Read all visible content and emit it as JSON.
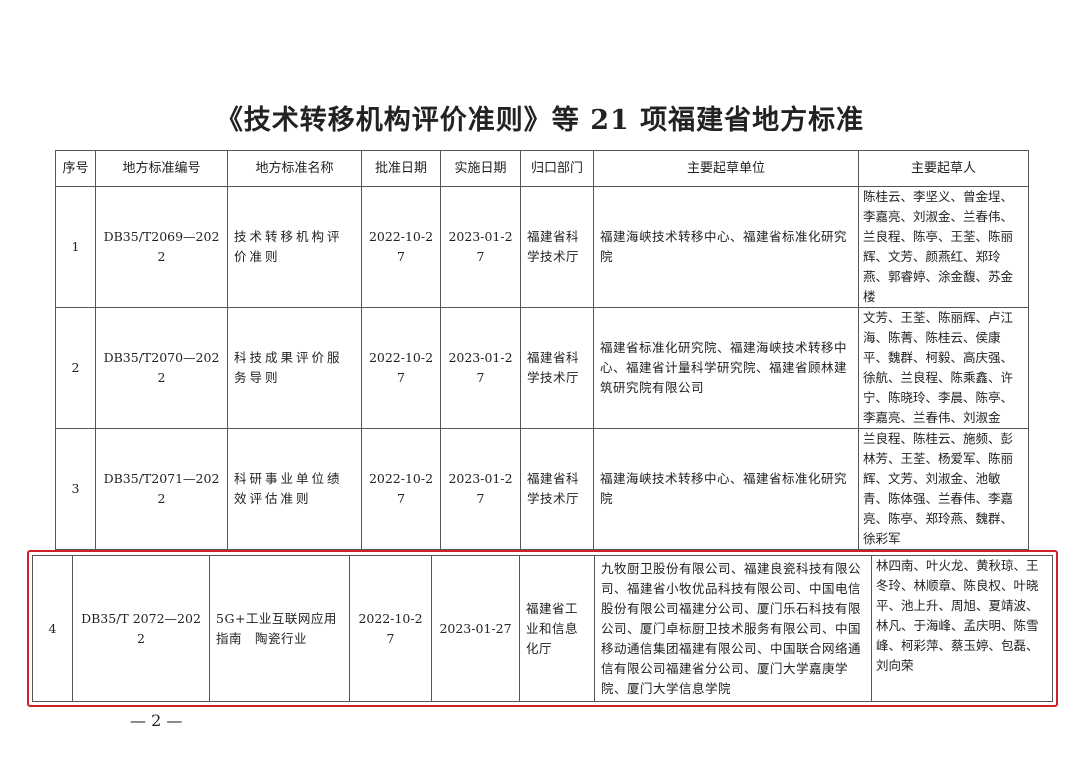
{
  "title": "《技术转移机构评价准则》等 21 项福建省地方标准",
  "headers": [
    "序号",
    "地方标准编号",
    "地方标准名称",
    "批准日期",
    "实施日期",
    "归口部门",
    "主要起草单位",
    "主要起草人"
  ],
  "rows": [
    {
      "no": "1",
      "code": "DB35/T2069—2022",
      "name": "技术转移机构评价准则",
      "approved": "2022-10-27",
      "effective": "2023-01-27",
      "dept": "福建省科学技术厅",
      "units": "福建海峡技术转移中心、福建省标准化研究院",
      "drafters": "陈桂云、李坚义、曾金埕、李嘉亮、刘淑金、兰春伟、兰良程、陈亭、王荃、陈丽辉、文芳、颜燕红、郑玲燕、郭睿婷、涂金馥、苏金楼"
    },
    {
      "no": "2",
      "code": "DB35/T2070—2022",
      "name": "科技成果评价服务导则",
      "approved": "2022-10-27",
      "effective": "2023-01-27",
      "dept": "福建省科学技术厅",
      "units": "福建省标准化研究院、福建海峡技术转移中心、福建省计量科学研究院、福建省顾林建筑研究院有限公司",
      "drafters": "文芳、王荃、陈丽辉、卢江海、陈菁、陈桂云、侯康平、魏群、柯毅、高庆强、徐航、兰良程、陈乘鑫、许宁、陈晓玲、李晨、陈亭、李嘉亮、兰春伟、刘淑金"
    },
    {
      "no": "3",
      "code": "DB35/T2071—2022",
      "name": "科研事业单位绩效评估准则",
      "approved": "2022-10-27",
      "effective": "2023-01-27",
      "dept": "福建省科学技术厅",
      "units": "福建海峡技术转移中心、福建省标准化研究院",
      "drafters": "兰良程、陈桂云、施频、彭林芳、王荃、杨爱军、陈丽辉、文芳、刘淑金、池敏青、陈体强、兰春伟、李嘉亮、陈亭、郑玲燕、魏群、徐彩军"
    },
    {
      "no": "4",
      "code": "DB35/T 2072—2022",
      "name": "5G+工业互联网应用指南　陶瓷行业",
      "approved": "2022-10-27",
      "effective": "2023-01-27",
      "dept": "福建省工业和信息化厅",
      "units": "九牧厨卫股份有限公司、福建良瓷科技有限公司、福建省小牧优品科技有限公司、中国电信股份有限公司福建分公司、厦门乐石科技有限公司、厦门卓标厨卫技术服务有限公司、中国移动通信集团福建有限公司、中国联合网络通信有限公司福建省分公司、厦门大学嘉庚学院、厦门大学信息学院",
      "drafters": "林四南、叶火龙、黄秋琼、王冬玲、林顺章、陈良权、叶晓平、池上升、周旭、夏靖波、林凡、于海峰、孟庆明、陈雪峰、柯彩萍、蔡玉婷、包磊、刘向荣"
    }
  ],
  "page_number": "— 2 —",
  "highlight_color": "#d0202a"
}
